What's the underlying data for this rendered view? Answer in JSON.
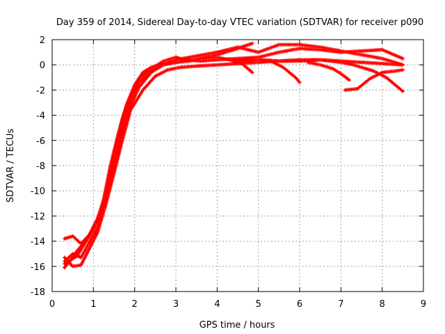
{
  "chart_data": {
    "type": "scatter",
    "title": "Day 359 of 2014, Sidereal Day-to-day VTEC variation (SDTVAR) for receiver p090",
    "xlabel": "GPS time / hours",
    "ylabel": "SDTVAR / TECUs",
    "xlim": [
      0,
      9
    ],
    "ylim": [
      -18,
      2
    ],
    "xticks": [
      0,
      1,
      2,
      3,
      4,
      5,
      6,
      7,
      8,
      9
    ],
    "yticks": [
      -18,
      -16,
      -14,
      -12,
      -10,
      -8,
      -6,
      -4,
      -2,
      0,
      2
    ],
    "grid": true,
    "legend": "none",
    "marker": "plus",
    "color": "#ff0000",
    "series": [
      {
        "x": [
          0.3,
          0.45,
          0.6,
          0.8,
          1.0,
          1.2,
          1.4,
          1.6,
          1.8,
          2.0,
          2.2,
          2.4,
          2.6,
          2.8,
          3.0,
          3.3,
          3.6,
          4.0,
          4.4,
          4.85
        ],
        "y": [
          -16.1,
          -15.5,
          -14.8,
          -14.0,
          -13.0,
          -11.5,
          -8.2,
          -5.5,
          -3.2,
          -1.6,
          -0.6,
          -0.2,
          0.0,
          0.1,
          0.2,
          0.3,
          0.5,
          0.8,
          1.2,
          1.7
        ]
      },
      {
        "x": [
          0.3,
          0.5,
          0.7,
          0.9,
          1.1,
          1.3,
          1.5,
          1.7,
          1.9,
          2.1,
          2.4,
          2.7,
          3.0,
          3.2,
          3.6,
          4.0,
          4.5,
          5.0,
          5.5,
          6.0,
          6.5,
          7.0,
          7.5,
          8.0,
          8.5
        ],
        "y": [
          -13.8,
          -13.6,
          -14.2,
          -13.5,
          -12.2,
          -10.2,
          -7.2,
          -4.3,
          -2.5,
          -1.1,
          -0.3,
          0.3,
          0.6,
          0.4,
          0.3,
          0.4,
          0.5,
          0.6,
          1.0,
          1.3,
          1.2,
          1.0,
          1.1,
          1.2,
          0.5
        ]
      },
      {
        "x": [
          0.3,
          0.5,
          0.7,
          0.9,
          1.1,
          1.3,
          1.5,
          1.7,
          1.9,
          2.1,
          2.4,
          2.7,
          3.0,
          3.5,
          4.0,
          4.5,
          5.0,
          5.5,
          6.0,
          6.5,
          7.0,
          7.5,
          8.0,
          8.5
        ],
        "y": [
          -15.6,
          -15.0,
          -15.3,
          -14.1,
          -12.9,
          -10.6,
          -7.9,
          -5.2,
          -2.8,
          -1.4,
          -0.5,
          0.1,
          0.4,
          0.7,
          1.0,
          1.4,
          1.0,
          1.6,
          1.6,
          1.4,
          1.1,
          0.8,
          0.5,
          0.0
        ]
      },
      {
        "x": [
          0.3,
          0.5,
          0.7,
          0.9,
          1.1,
          1.3,
          1.5,
          1.7,
          1.9,
          2.2,
          2.5,
          2.8,
          3.1,
          3.5,
          4.0,
          4.5,
          5.0,
          5.5,
          6.0,
          6.5,
          7.0,
          7.3,
          7.6,
          7.8,
          8.1,
          8.5
        ],
        "y": [
          -15.3,
          -16.0,
          -15.9,
          -14.6,
          -13.3,
          -11.1,
          -8.6,
          -6.0,
          -3.6,
          -2.0,
          -0.9,
          -0.4,
          -0.2,
          -0.1,
          0.0,
          0.1,
          0.2,
          0.3,
          0.4,
          0.4,
          0.2,
          0.0,
          -0.3,
          -0.5,
          -1.0,
          -2.1
        ]
      },
      {
        "x": [
          0.3,
          0.6,
          0.9,
          1.2,
          1.5,
          1.8,
          2.1,
          2.4,
          2.7,
          3.0,
          3.3,
          3.6,
          4.0,
          4.3,
          4.6,
          4.85
        ],
        "y": [
          -15.8,
          -15.2,
          -13.6,
          -11.8,
          -8.0,
          -4.0,
          -1.8,
          -0.6,
          0.0,
          0.2,
          0.3,
          0.5,
          0.6,
          0.4,
          0.1,
          -0.6
        ]
      },
      {
        "x": [
          5.0,
          5.3,
          5.6,
          5.9,
          6.0
        ],
        "y": [
          0.4,
          0.3,
          -0.2,
          -1.0,
          -1.4
        ]
      },
      {
        "x": [
          6.2,
          6.5,
          6.8,
          7.0,
          7.2
        ],
        "y": [
          0.2,
          0.0,
          -0.3,
          -0.7,
          -1.2
        ]
      },
      {
        "x": [
          7.1,
          7.4,
          7.7,
          8.0,
          8.3,
          8.5
        ],
        "y": [
          -2.0,
          -1.9,
          -1.1,
          -0.6,
          -0.5,
          -0.4
        ]
      },
      {
        "x": [
          4.4,
          5.0,
          5.5,
          6.0,
          6.5,
          7.0,
          7.5,
          8.0,
          8.5
        ],
        "y": [
          0.3,
          0.4,
          0.3,
          0.3,
          0.4,
          0.3,
          0.2,
          0.1,
          0.0
        ]
      }
    ]
  }
}
